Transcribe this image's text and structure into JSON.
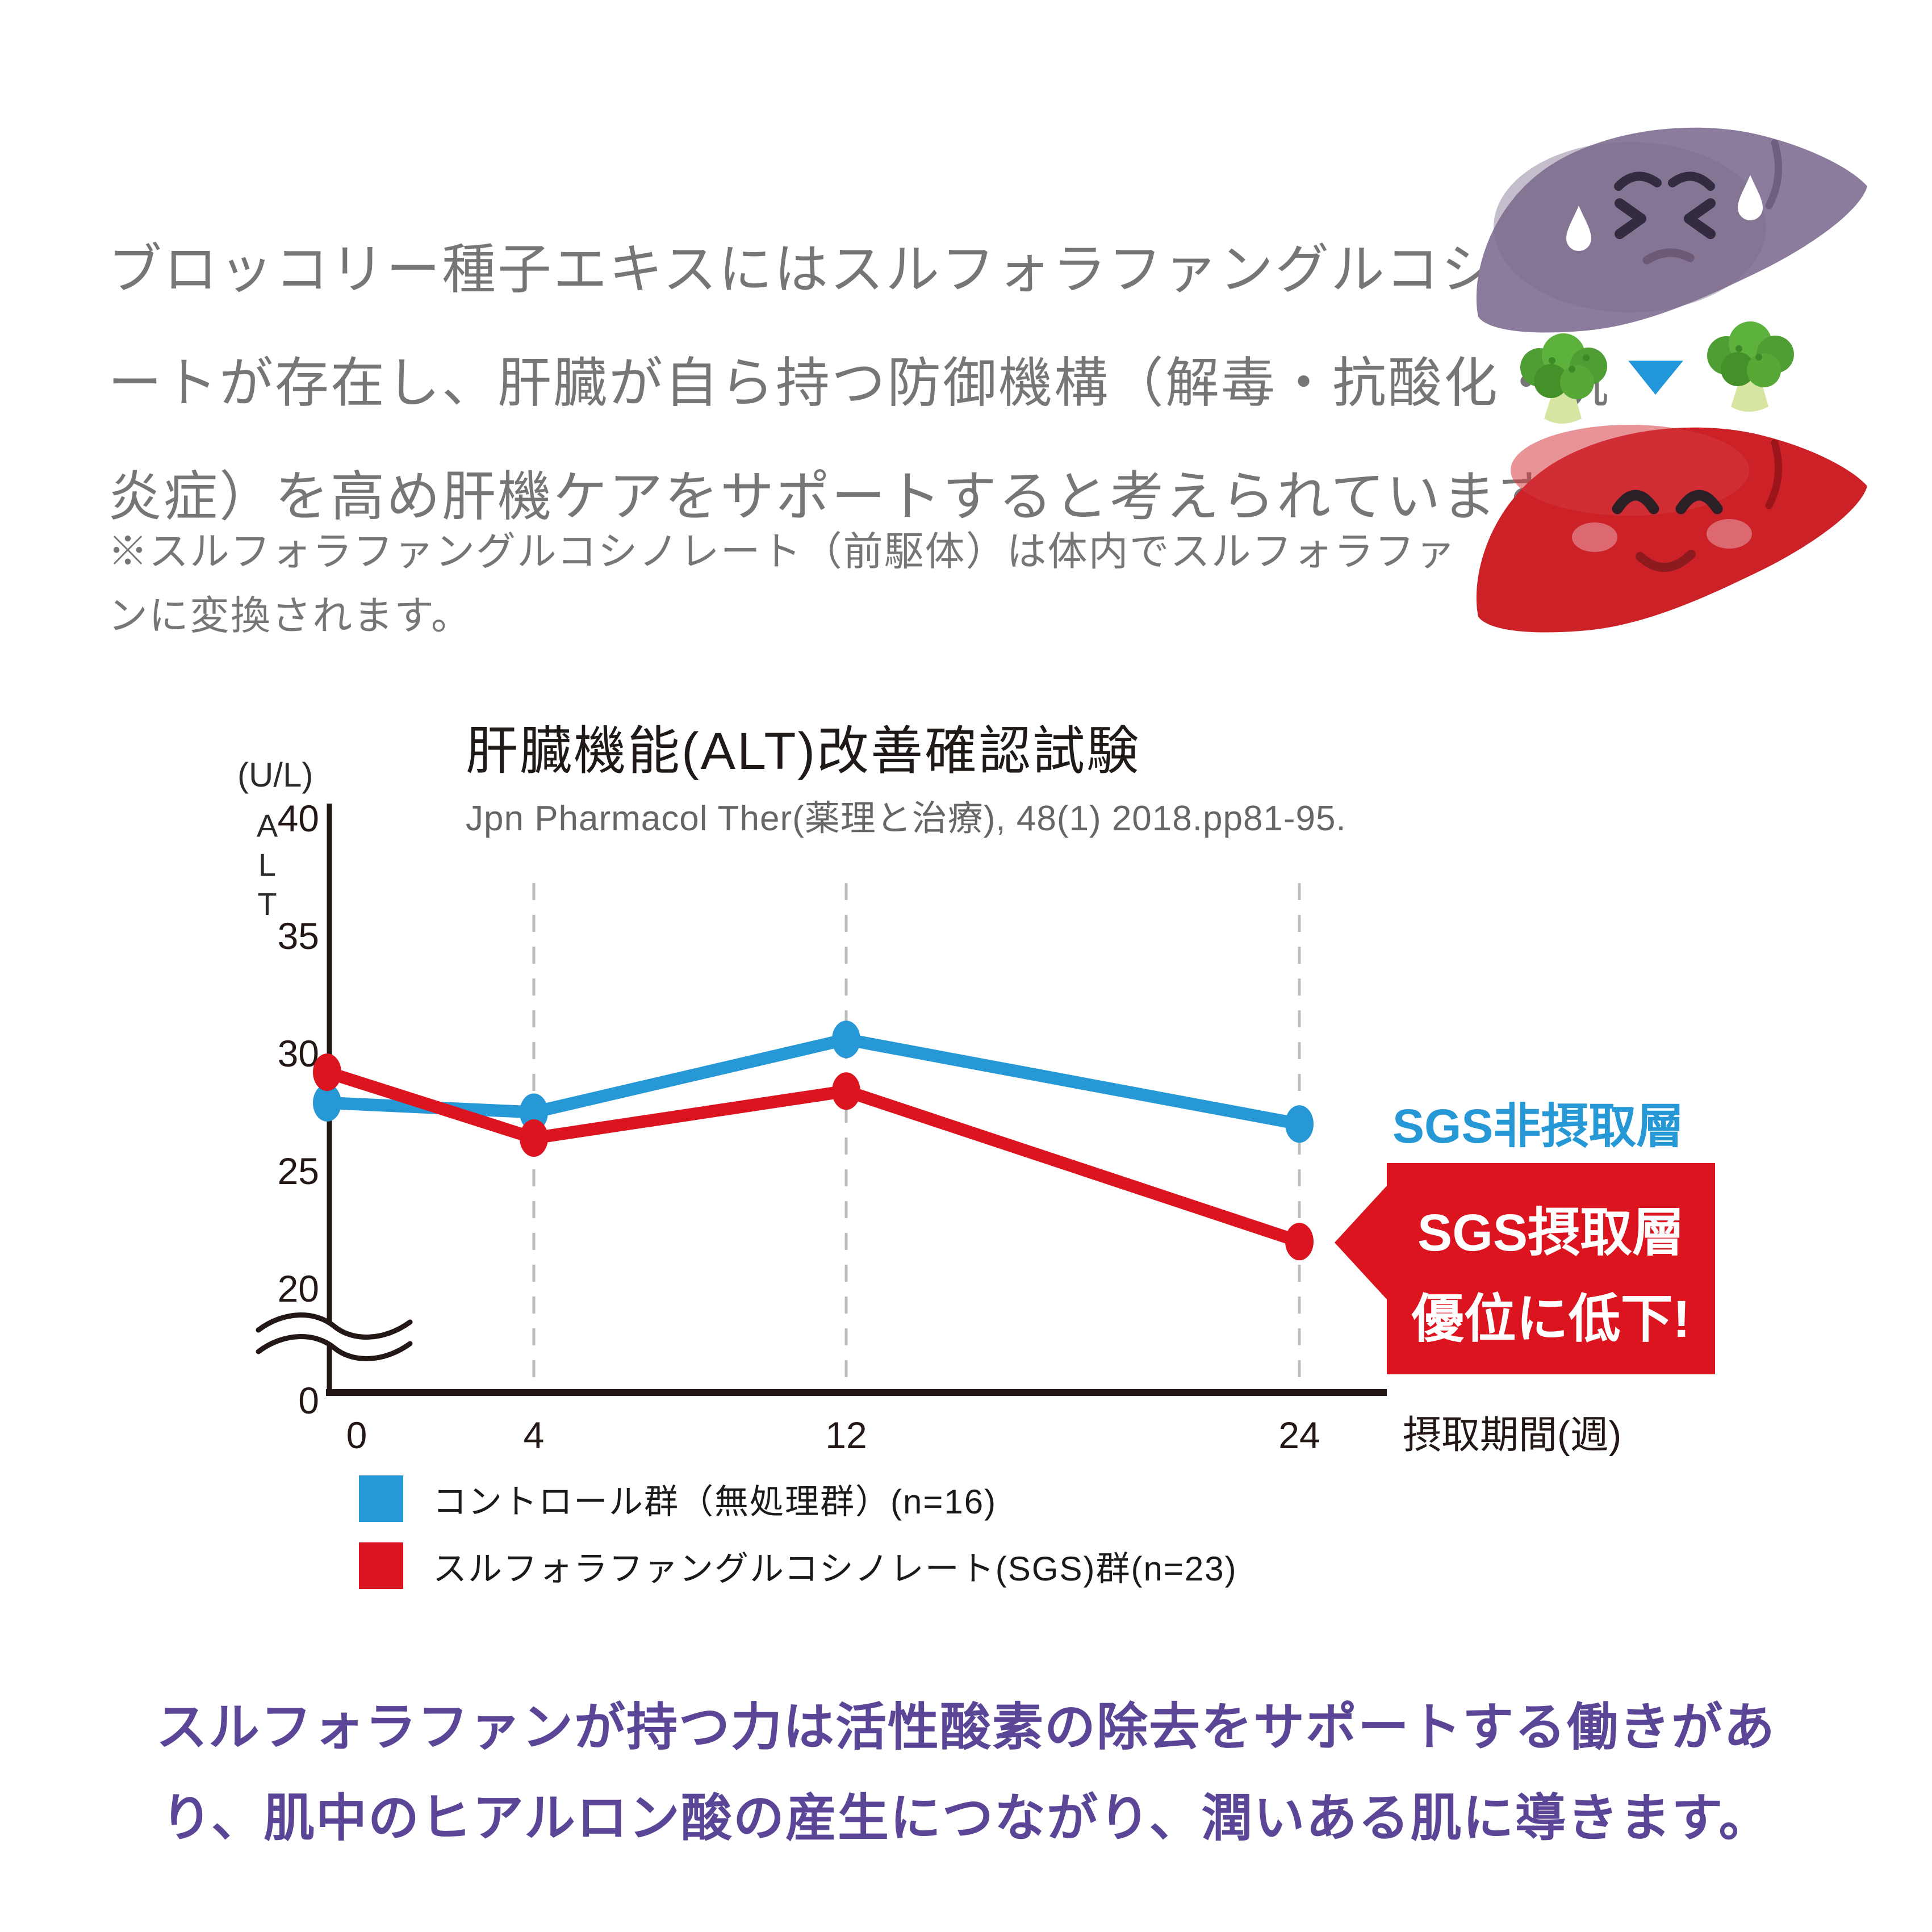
{
  "intro": {
    "lines": [
      "ブロッコリー種子エキスにはスルフォラファングルコシノレ",
      "ートが存在し、肝臓が自ら持つ防御機構（解毒・抗酸化・抗",
      "炎症）を高め肝機ケアをサポートすると考えられています。"
    ]
  },
  "note": {
    "lines": [
      "※スルフォラファングルコシノレート（前駆体）は体内でスルフォラファ",
      "ンに変換されます。"
    ]
  },
  "illustration": {
    "icons": [
      "sick-liver-icon",
      "broccoli-icon",
      "down-arrow-icon",
      "broccoli-icon",
      "healthy-liver-icon"
    ]
  },
  "chart_data": {
    "type": "line",
    "title": "肝臓機能(ALT)改善確認試験",
    "subtitle": "Jpn Pharmacol Ther(薬理と治療), 48(1) 2018.pp81-95.",
    "ylabel_unit": "(U/L)",
    "ylabel": "ALT",
    "xlabel": "摂取期間(週)",
    "categories": [
      0,
      4,
      12,
      24
    ],
    "series": [
      {
        "name": "コントロール群（無処理群）(n=16)",
        "color": "#2598d5",
        "values": [
          27.9,
          27.5,
          30.6,
          27.0
        ]
      },
      {
        "name": "スルフォラファングルコシノレート(SGS)群(n=23)",
        "color": "#dc1420",
        "values": [
          29.2,
          26.4,
          28.4,
          22.0
        ]
      }
    ],
    "yticks": [
      40,
      35,
      30,
      25,
      20
    ],
    "origin_label": "0",
    "ylim": [
      20,
      40
    ],
    "axis_break": true,
    "grid": "dashed-vertical-at-categories",
    "legend_position": "bottom-left",
    "annotations": {
      "control_label": "SGS非摂取層",
      "callout_lines": [
        "SGS摂取層",
        "優位に低下!"
      ]
    }
  },
  "footer": {
    "lines": [
      "スルフォラファンが持つ力は活性酸素の除去をサポートする働きがあ",
      "り、肌中のヒアルロン酸の産生につながり、潤いある肌に導きます。"
    ]
  },
  "colors": {
    "control_blue": "#2598d5",
    "sgs_red": "#dc1420",
    "footer_purple": "#5b4596",
    "text_gray": "#767676",
    "axis_dark": "#231815",
    "subtitle_gray": "#666666",
    "gridline_gray": "#bcbcbc"
  }
}
